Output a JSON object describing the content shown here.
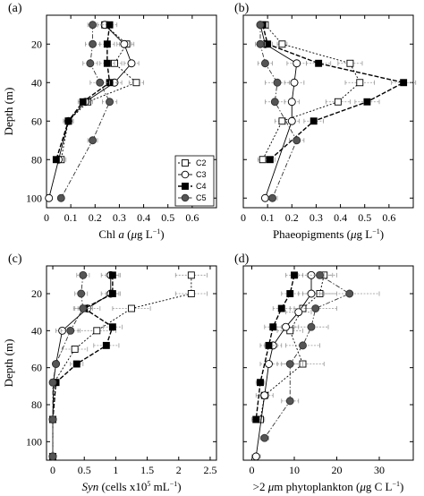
{
  "chart_data": [
    {
      "type": "line",
      "panel_label": "(a)",
      "xlabel": "Chl a (μg L⁻¹)",
      "xlabel_parts": [
        "Chl ",
        "a",
        " (",
        "μ",
        "g L",
        "−1",
        ")"
      ],
      "ylabel": "Depth (m)",
      "xlim": [
        0,
        0.7
      ],
      "ylim": [
        105,
        5
      ],
      "xticks": [
        "0",
        "0.1",
        "0.2",
        "0.3",
        "0.4",
        "0.5",
        "0.6"
      ],
      "yticks": [
        "20",
        "40",
        "60",
        "80",
        "100"
      ],
      "show_legend": true,
      "series": [
        {
          "name": "C2",
          "depth": [
            10,
            20,
            30,
            40,
            50,
            60,
            80
          ],
          "values": [
            0.24,
            0.33,
            0.28,
            0.37,
            0.17,
            0.09,
            0.06
          ],
          "err": [
            0.03,
            0.03,
            0.03,
            0.03,
            0.02,
            0.02,
            0.02
          ]
        },
        {
          "name": "C3",
          "depth": [
            10,
            20,
            30,
            40,
            50,
            60,
            80,
            100
          ],
          "values": [
            0.24,
            0.32,
            0.35,
            0.28,
            0.16,
            0.09,
            0.05,
            0.01
          ],
          "err": [
            0.03,
            0.03,
            0.03,
            0.03,
            0.02,
            0.02,
            0.01,
            0.01
          ]
        },
        {
          "name": "C4",
          "depth": [
            10,
            20,
            30,
            40,
            50,
            60,
            80
          ],
          "values": [
            0.26,
            0.25,
            0.25,
            0.26,
            0.15,
            0.09,
            0.04
          ],
          "err": [
            0.03,
            0.03,
            0.03,
            0.03,
            0.02,
            0.02,
            0.01
          ]
        },
        {
          "name": "C5",
          "depth": [
            10,
            20,
            30,
            40,
            50,
            70,
            100
          ],
          "values": [
            0.19,
            0.19,
            0.18,
            0.22,
            0.26,
            0.19,
            0.06
          ],
          "err": [
            0.02,
            0.03,
            0.03,
            0.04,
            0.03,
            0.02,
            0.01
          ]
        }
      ]
    },
    {
      "type": "line",
      "panel_label": "(b)",
      "xlabel": "Phaeopigments (μg L⁻¹)",
      "xlabel_parts": [
        "Phaeopigments (",
        "",
        "",
        "μ",
        "g L",
        "−1",
        ")"
      ],
      "ylabel": "",
      "xlim": [
        0,
        0.7
      ],
      "ylim": [
        105,
        5
      ],
      "xticks": [
        "0",
        "0.1",
        "0.2",
        "0.3",
        "0.4",
        "0.5",
        "0.6"
      ],
      "yticks": [],
      "show_legend": false,
      "series": [
        {
          "name": "C2",
          "depth": [
            10,
            20,
            30,
            40,
            50,
            60,
            80
          ],
          "values": [
            0.09,
            0.16,
            0.44,
            0.48,
            0.39,
            0.16,
            0.08
          ],
          "err": [
            0.01,
            0.02,
            0.05,
            0.06,
            0.05,
            0.03,
            0.02
          ]
        },
        {
          "name": "C3",
          "depth": [
            10,
            20,
            30,
            40,
            50,
            60,
            100
          ],
          "values": [
            0.07,
            0.09,
            0.22,
            0.21,
            0.2,
            0.2,
            0.09
          ],
          "err": [
            0.01,
            0.02,
            0.04,
            0.04,
            0.03,
            0.03,
            0.01
          ]
        },
        {
          "name": "C4",
          "depth": [
            10,
            20,
            30,
            40,
            50,
            60,
            80
          ],
          "values": [
            0.08,
            0.1,
            0.31,
            0.66,
            0.51,
            0.29,
            0.11
          ],
          "err": [
            0.01,
            0.02,
            0.05,
            0.05,
            0.05,
            0.04,
            0.02
          ]
        },
        {
          "name": "C5",
          "depth": [
            10,
            20,
            30,
            40,
            50,
            70,
            100
          ],
          "values": [
            0.07,
            0.07,
            0.09,
            0.14,
            0.13,
            0.22,
            0.12
          ],
          "err": [
            0.01,
            0.02,
            0.03,
            0.05,
            0.04,
            0.03,
            0.02
          ]
        }
      ]
    },
    {
      "type": "line",
      "panel_label": "(c)",
      "xlabel": "Syn (cells x10⁵ mL⁻¹)",
      "xlabel_parts": [
        "",
        "Syn",
        " (cells x10",
        "5",
        " mL",
        "−1",
        ")"
      ],
      "ylabel": "Depth (m)",
      "xlim": [
        -0.1,
        2.6
      ],
      "ylim": [
        110,
        5
      ],
      "xticks": [
        "0",
        "0.5",
        "1",
        "1.5",
        "2",
        "2.5"
      ],
      "yticks": [
        "20",
        "40",
        "60",
        "80",
        "100"
      ],
      "show_legend": false,
      "series": [
        {
          "name": "C2",
          "depth": [
            10,
            20,
            28,
            40,
            50,
            68,
            88,
            108
          ],
          "values": [
            2.2,
            2.2,
            1.25,
            0.7,
            0.35,
            0.02,
            0.0,
            0.0
          ],
          "err": [
            0.25,
            0.25,
            0.3,
            0.3,
            0.2,
            0.02,
            0.01,
            0.01
          ]
        },
        {
          "name": "C3",
          "depth": [
            10,
            20,
            28,
            40,
            58,
            68,
            88,
            108
          ],
          "values": [
            0.92,
            0.92,
            0.55,
            0.15,
            0.05,
            0.01,
            0.0,
            0.0
          ],
          "err": [
            0.15,
            0.15,
            0.2,
            0.1,
            0.05,
            0.01,
            0.01,
            0.01
          ]
        },
        {
          "name": "C4",
          "depth": [
            10,
            20,
            28,
            38,
            48,
            58,
            68,
            88
          ],
          "values": [
            0.95,
            0.95,
            0.5,
            0.95,
            0.85,
            0.38,
            0.05,
            0.0
          ],
          "err": [
            0.1,
            0.1,
            0.1,
            0.15,
            0.2,
            0.1,
            0.03,
            0.01
          ]
        },
        {
          "name": "C5",
          "depth": [
            10,
            20,
            28,
            40,
            58,
            68,
            88,
            108
          ],
          "values": [
            0.48,
            0.45,
            0.48,
            0.28,
            0.05,
            0.0,
            0.0,
            0.0
          ],
          "err": [
            0.1,
            0.1,
            0.15,
            0.15,
            0.03,
            0.01,
            0.01,
            0.01
          ]
        }
      ]
    },
    {
      "type": "line",
      "panel_label": "(d)",
      "xlabel": ">2 μm phytoplankton (μg C L⁻¹)",
      "xlabel_parts": [
        ">2 ",
        "μ",
        "m phytoplankton (",
        "μ",
        "g C L",
        "−1",
        ")"
      ],
      "ylabel": "",
      "xlim": [
        -2,
        38
      ],
      "ylim": [
        110,
        5
      ],
      "xticks": [
        "0",
        "10",
        "20",
        "30"
      ],
      "yticks": [],
      "show_legend": false,
      "series": [
        {
          "name": "C2",
          "depth": [
            10,
            20,
            28,
            40,
            58,
            75,
            88
          ],
          "values": [
            17,
            16,
            12,
            9,
            12,
            3,
            2
          ],
          "err": [
            3,
            4,
            3,
            3,
            5,
            2,
            1
          ]
        },
        {
          "name": "C3",
          "depth": [
            10,
            20,
            30,
            38,
            48,
            58,
            75,
            108
          ],
          "values": [
            14,
            14,
            11,
            8,
            5,
            4,
            3,
            1
          ],
          "err": [
            3,
            3,
            3,
            3,
            2,
            2,
            1,
            1
          ]
        },
        {
          "name": "C4",
          "depth": [
            10,
            20,
            28,
            38,
            48,
            68,
            88
          ],
          "values": [
            10,
            9,
            7,
            5,
            4,
            2,
            1
          ],
          "err": [
            2,
            2,
            2,
            2,
            2,
            1,
            1
          ]
        },
        {
          "name": "C5",
          "depth": [
            10,
            20,
            28,
            38,
            48,
            58,
            78,
            98
          ],
          "values": [
            16,
            23,
            15,
            14,
            12,
            9,
            9,
            3
          ],
          "err": [
            3,
            7,
            5,
            4,
            4,
            3,
            2,
            1
          ]
        }
      ]
    }
  ]
}
